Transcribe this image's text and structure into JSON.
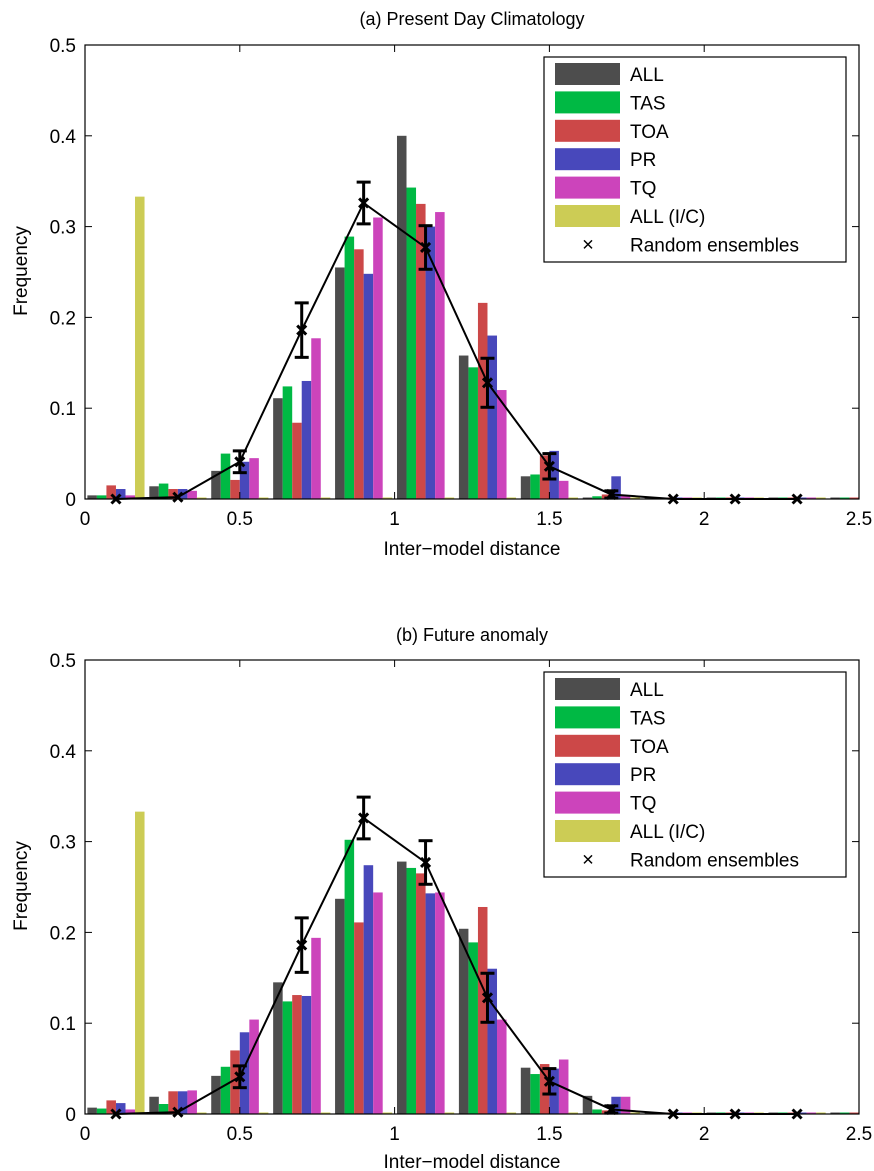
{
  "chart_data": [
    {
      "type": "bar",
      "title": "(a) Present Day Climatology",
      "xlabel": "Inter−model distance",
      "ylabel": "Frequency",
      "xlim": [
        0,
        2.5
      ],
      "ylim": [
        0,
        0.5
      ],
      "xticks": [
        0,
        0.5,
        1,
        1.5,
        2,
        2.5
      ],
      "xtick_labels": [
        "0",
        "0.5",
        "1",
        "1.5",
        "2",
        "2.5"
      ],
      "yticks": [
        0,
        0.1,
        0.2,
        0.3,
        0.4,
        0.5
      ],
      "ytick_labels": [
        "0",
        "0.1",
        "0.2",
        "0.3",
        "0.4",
        "0.5"
      ],
      "grid": false,
      "legend_position": "top-right",
      "bin_centers": [
        0.1,
        0.3,
        0.5,
        0.7,
        0.9,
        1.1,
        1.3,
        1.5,
        1.7,
        1.9,
        2.1,
        2.3,
        2.5
      ],
      "series": [
        {
          "name": "ALL",
          "color": "#4d4d4d",
          "values": [
            0.004,
            0.014,
            0.031,
            0.111,
            0.255,
            0.4,
            0.158,
            0.025,
            0.0,
            0.0,
            0.0,
            0.0,
            0.0
          ]
        },
        {
          "name": "TAS",
          "color": "#00b944",
          "values": [
            0.004,
            0.017,
            0.05,
            0.124,
            0.289,
            0.343,
            0.145,
            0.027,
            0.003,
            0.0,
            0.0,
            0.0,
            0.0
          ]
        },
        {
          "name": "TOA",
          "color": "#cc4848",
          "values": [
            0.015,
            0.011,
            0.021,
            0.084,
            0.275,
            0.325,
            0.216,
            0.048,
            0.005,
            0.0,
            0.0,
            0.0,
            0.0
          ]
        },
        {
          "name": "PR",
          "color": "#4848bb",
          "values": [
            0.011,
            0.011,
            0.041,
            0.13,
            0.248,
            0.3,
            0.18,
            0.053,
            0.025,
            0.0,
            0.0,
            0.0,
            0.0
          ]
        },
        {
          "name": "TQ",
          "color": "#cc44bb",
          "values": [
            0.004,
            0.009,
            0.045,
            0.177,
            0.31,
            0.316,
            0.12,
            0.02,
            0.004,
            0.0,
            0.0,
            0.0,
            0.0
          ]
        },
        {
          "name": "ALL (I/C)",
          "color": "#cccc55",
          "values": [
            0.333,
            0.0,
            0.0,
            0.0,
            0.0,
            0.0,
            0.0,
            0.0,
            0.0,
            0.0,
            0.0,
            0.0,
            0.0
          ]
        }
      ],
      "random_ensembles": {
        "name": "Random ensembles",
        "x": [
          0.1,
          0.3,
          0.5,
          0.7,
          0.9,
          1.1,
          1.3,
          1.5,
          1.7,
          1.9,
          2.1,
          2.3
        ],
        "y": [
          0.0,
          0.002,
          0.041,
          0.186,
          0.326,
          0.277,
          0.128,
          0.036,
          0.005,
          0.0,
          0.0,
          0.0
        ],
        "err": [
          0.0,
          0.0,
          0.012,
          0.03,
          0.023,
          0.024,
          0.027,
          0.014,
          0.004,
          0.0,
          0.0,
          0.0
        ]
      }
    },
    {
      "type": "bar",
      "title": "(b) Future anomaly",
      "xlabel": "Inter−model distance",
      "ylabel": "Frequency",
      "xlim": [
        0,
        2.5
      ],
      "ylim": [
        0,
        0.5
      ],
      "xticks": [
        0,
        0.5,
        1,
        1.5,
        2,
        2.5
      ],
      "xtick_labels": [
        "0",
        "0.5",
        "1",
        "1.5",
        "2",
        "2.5"
      ],
      "yticks": [
        0,
        0.1,
        0.2,
        0.3,
        0.4,
        0.5
      ],
      "ytick_labels": [
        "0",
        "0.1",
        "0.2",
        "0.3",
        "0.4",
        "0.5"
      ],
      "grid": false,
      "legend_position": "top-right",
      "bin_centers": [
        0.1,
        0.3,
        0.5,
        0.7,
        0.9,
        1.1,
        1.3,
        1.5,
        1.7,
        1.9,
        2.1,
        2.3,
        2.5
      ],
      "series": [
        {
          "name": "ALL",
          "color": "#4d4d4d",
          "values": [
            0.007,
            0.019,
            0.042,
            0.145,
            0.237,
            0.278,
            0.204,
            0.051,
            0.02,
            0.0,
            0.0,
            0.0,
            0.0
          ]
        },
        {
          "name": "TAS",
          "color": "#00b944",
          "values": [
            0.006,
            0.011,
            0.052,
            0.124,
            0.302,
            0.271,
            0.189,
            0.044,
            0.005,
            0.0,
            0.0,
            0.0,
            0.0
          ]
        },
        {
          "name": "TOA",
          "color": "#cc4848",
          "values": [
            0.015,
            0.025,
            0.07,
            0.131,
            0.211,
            0.265,
            0.228,
            0.055,
            0.004,
            0.0,
            0.0,
            0.0,
            0.0
          ]
        },
        {
          "name": "PR",
          "color": "#4848bb",
          "values": [
            0.012,
            0.025,
            0.09,
            0.13,
            0.274,
            0.243,
            0.16,
            0.05,
            0.019,
            0.0,
            0.0,
            0.0,
            0.0
          ]
        },
        {
          "name": "TQ",
          "color": "#cc44bb",
          "values": [
            0.005,
            0.026,
            0.104,
            0.194,
            0.244,
            0.244,
            0.104,
            0.06,
            0.019,
            0.0,
            0.0,
            0.0,
            0.0
          ]
        },
        {
          "name": "ALL (I/C)",
          "color": "#cccc55",
          "values": [
            0.333,
            0.0,
            0.0,
            0.0,
            0.0,
            0.0,
            0.0,
            0.0,
            0.0,
            0.0,
            0.0,
            0.0,
            0.0
          ]
        }
      ],
      "random_ensembles": {
        "name": "Random ensembles",
        "x": [
          0.1,
          0.3,
          0.5,
          0.7,
          0.9,
          1.1,
          1.3,
          1.5,
          1.7,
          1.9,
          2.1,
          2.3
        ],
        "y": [
          0.0,
          0.002,
          0.041,
          0.186,
          0.326,
          0.277,
          0.128,
          0.036,
          0.005,
          0.0,
          0.0,
          0.0
        ],
        "err": [
          0.0,
          0.0,
          0.012,
          0.03,
          0.023,
          0.024,
          0.027,
          0.014,
          0.004,
          0.0,
          0.0,
          0.0
        ]
      }
    }
  ]
}
